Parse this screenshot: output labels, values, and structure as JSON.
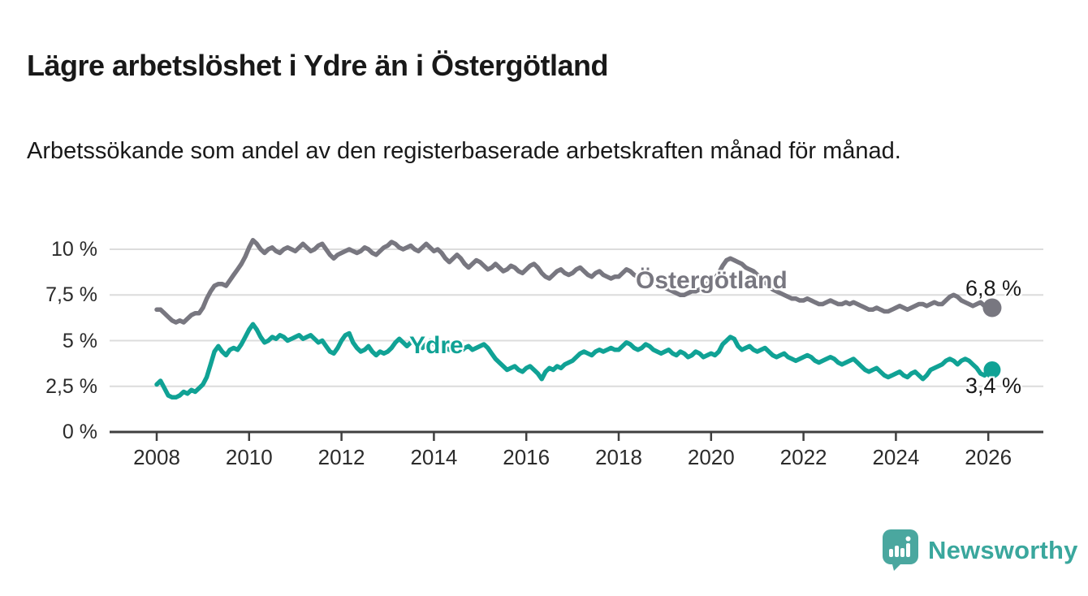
{
  "header": {
    "title": "Lägre arbetslöshet i Ydre än i Östergötland",
    "subtitle": "Arbetssökande som andel av den registerbaserade arbetskraften månad för månad."
  },
  "branding": {
    "name": "Newsworthy",
    "color": "#3aa79d"
  },
  "colors": {
    "ostergotland_line": "#787780",
    "ydre_line": "#10a295",
    "gridline": "#dcdcdc",
    "axis": "#3f3f3f",
    "text": "#191919"
  },
  "chart_data": {
    "type": "line",
    "title": "Lägre arbetslöshet i Ydre än i Östergötland",
    "xlabel": "",
    "ylabel": "",
    "unit": "%",
    "grid": true,
    "legend_position": "inline-labels",
    "x_start": "2008-01",
    "x_end": "2026-02",
    "x_interval": "monthly",
    "ylim": [
      0,
      11
    ],
    "y_ticks": [
      {
        "value": 0,
        "label": "0 %"
      },
      {
        "value": 2.5,
        "label": "2,5 %"
      },
      {
        "value": 5,
        "label": "5 %"
      },
      {
        "value": 7.5,
        "label": "7,5 %"
      },
      {
        "value": 10,
        "label": "10 %"
      }
    ],
    "x_ticks": [
      {
        "year": 2008,
        "label": "2008"
      },
      {
        "year": 2010,
        "label": "2010"
      },
      {
        "year": 2012,
        "label": "2012"
      },
      {
        "year": 2014,
        "label": "2014"
      },
      {
        "year": 2016,
        "label": "2016"
      },
      {
        "year": 2018,
        "label": "2018"
      },
      {
        "year": 2020,
        "label": "2020"
      },
      {
        "year": 2022,
        "label": "2022"
      },
      {
        "year": 2024,
        "label": "2024"
      },
      {
        "year": 2026,
        "label": "2026"
      }
    ],
    "series": [
      {
        "name": "Östergötland",
        "color": "#787780",
        "end_value": 6.8,
        "end_label": "6,8 %",
        "values": [
          6.7,
          6.7,
          6.5,
          6.3,
          6.1,
          6.0,
          6.1,
          6.0,
          6.2,
          6.4,
          6.5,
          6.5,
          6.8,
          7.3,
          7.7,
          8.0,
          8.1,
          8.1,
          8.0,
          8.3,
          8.6,
          8.9,
          9.2,
          9.6,
          10.1,
          10.5,
          10.3,
          10.0,
          9.8,
          10.0,
          10.1,
          9.9,
          9.8,
          10.0,
          10.1,
          10.0,
          9.9,
          10.1,
          10.3,
          10.1,
          9.9,
          10.0,
          10.2,
          10.3,
          10.0,
          9.7,
          9.5,
          9.7,
          9.8,
          9.9,
          10.0,
          9.9,
          9.8,
          9.9,
          10.1,
          10.0,
          9.8,
          9.7,
          9.9,
          10.1,
          10.2,
          10.4,
          10.3,
          10.1,
          10.0,
          10.1,
          10.2,
          10.0,
          9.9,
          10.1,
          10.3,
          10.1,
          9.9,
          10.0,
          9.8,
          9.5,
          9.3,
          9.5,
          9.7,
          9.5,
          9.2,
          9.0,
          9.2,
          9.4,
          9.3,
          9.1,
          8.9,
          9.0,
          9.2,
          9.0,
          8.8,
          8.9,
          9.1,
          9.0,
          8.8,
          8.7,
          8.9,
          9.1,
          9.2,
          9.0,
          8.7,
          8.5,
          8.4,
          8.6,
          8.8,
          8.9,
          8.7,
          8.6,
          8.7,
          8.9,
          9.0,
          8.8,
          8.6,
          8.5,
          8.7,
          8.8,
          8.6,
          8.5,
          8.4,
          8.5,
          8.5,
          8.7,
          8.9,
          8.8,
          8.6,
          8.5,
          8.6,
          8.7,
          8.5,
          8.3,
          8.1,
          8.0,
          7.9,
          7.8,
          7.7,
          7.6,
          7.5,
          7.5,
          7.6,
          7.7,
          7.7,
          7.8,
          7.9,
          8.1,
          8.3,
          8.4,
          8.7,
          9.1,
          9.4,
          9.5,
          9.4,
          9.3,
          9.2,
          9.0,
          8.9,
          8.8,
          8.6,
          8.4,
          8.2,
          8.0,
          7.8,
          7.7,
          7.6,
          7.5,
          7.4,
          7.3,
          7.3,
          7.2,
          7.2,
          7.3,
          7.2,
          7.1,
          7.0,
          7.0,
          7.1,
          7.2,
          7.1,
          7.0,
          7.0,
          7.1,
          7.0,
          7.1,
          7.0,
          6.9,
          6.8,
          6.7,
          6.7,
          6.8,
          6.7,
          6.6,
          6.6,
          6.7,
          6.8,
          6.9,
          6.8,
          6.7,
          6.8,
          6.9,
          7.0,
          7.0,
          6.9,
          7.0,
          7.1,
          7.0,
          7.0,
          7.2,
          7.4,
          7.5,
          7.4,
          7.2,
          7.1,
          7.0,
          6.9,
          7.0,
          7.1,
          6.9,
          6.9,
          6.8
        ]
      },
      {
        "name": "Ydre",
        "color": "#10a295",
        "end_value": 3.4,
        "end_label": "3,4 %",
        "values": [
          2.6,
          2.8,
          2.4,
          2.0,
          1.9,
          1.9,
          2.0,
          2.2,
          2.1,
          2.3,
          2.2,
          2.4,
          2.6,
          3.0,
          3.7,
          4.4,
          4.7,
          4.4,
          4.2,
          4.5,
          4.6,
          4.5,
          4.8,
          5.2,
          5.6,
          5.9,
          5.6,
          5.2,
          4.9,
          5.0,
          5.2,
          5.1,
          5.3,
          5.2,
          5.0,
          5.1,
          5.2,
          5.3,
          5.1,
          5.2,
          5.3,
          5.1,
          4.9,
          5.0,
          4.7,
          4.4,
          4.3,
          4.6,
          5.0,
          5.3,
          5.4,
          4.9,
          4.6,
          4.4,
          4.5,
          4.7,
          4.4,
          4.2,
          4.4,
          4.3,
          4.4,
          4.6,
          4.9,
          5.1,
          4.9,
          4.7,
          4.9,
          5.0,
          4.8,
          4.6,
          4.8,
          5.0,
          4.8,
          4.7,
          4.8,
          4.6,
          4.5,
          4.7,
          4.6,
          4.4,
          4.6,
          4.7,
          4.5,
          4.6,
          4.7,
          4.8,
          4.6,
          4.3,
          4.0,
          3.8,
          3.6,
          3.4,
          3.5,
          3.6,
          3.4,
          3.3,
          3.5,
          3.6,
          3.4,
          3.2,
          2.9,
          3.3,
          3.5,
          3.4,
          3.6,
          3.5,
          3.7,
          3.8,
          3.9,
          4.1,
          4.3,
          4.4,
          4.3,
          4.2,
          4.4,
          4.5,
          4.4,
          4.5,
          4.6,
          4.5,
          4.5,
          4.7,
          4.9,
          4.8,
          4.6,
          4.5,
          4.6,
          4.8,
          4.7,
          4.5,
          4.4,
          4.3,
          4.4,
          4.5,
          4.3,
          4.2,
          4.4,
          4.3,
          4.1,
          4.2,
          4.4,
          4.3,
          4.1,
          4.2,
          4.3,
          4.2,
          4.4,
          4.8,
          5.0,
          5.2,
          5.1,
          4.7,
          4.5,
          4.6,
          4.7,
          4.5,
          4.4,
          4.5,
          4.6,
          4.4,
          4.2,
          4.1,
          4.2,
          4.3,
          4.1,
          4.0,
          3.9,
          4.0,
          4.1,
          4.2,
          4.1,
          3.9,
          3.8,
          3.9,
          4.0,
          4.1,
          4.0,
          3.8,
          3.7,
          3.8,
          3.9,
          4.0,
          3.8,
          3.6,
          3.4,
          3.3,
          3.4,
          3.5,
          3.3,
          3.1,
          3.0,
          3.1,
          3.2,
          3.3,
          3.1,
          3.0,
          3.2,
          3.3,
          3.1,
          2.9,
          3.1,
          3.4,
          3.5,
          3.6,
          3.7,
          3.9,
          4.0,
          3.9,
          3.7,
          3.9,
          4.0,
          3.9,
          3.7,
          3.5,
          3.2,
          3.1,
          3.4,
          3.4
        ]
      }
    ]
  }
}
